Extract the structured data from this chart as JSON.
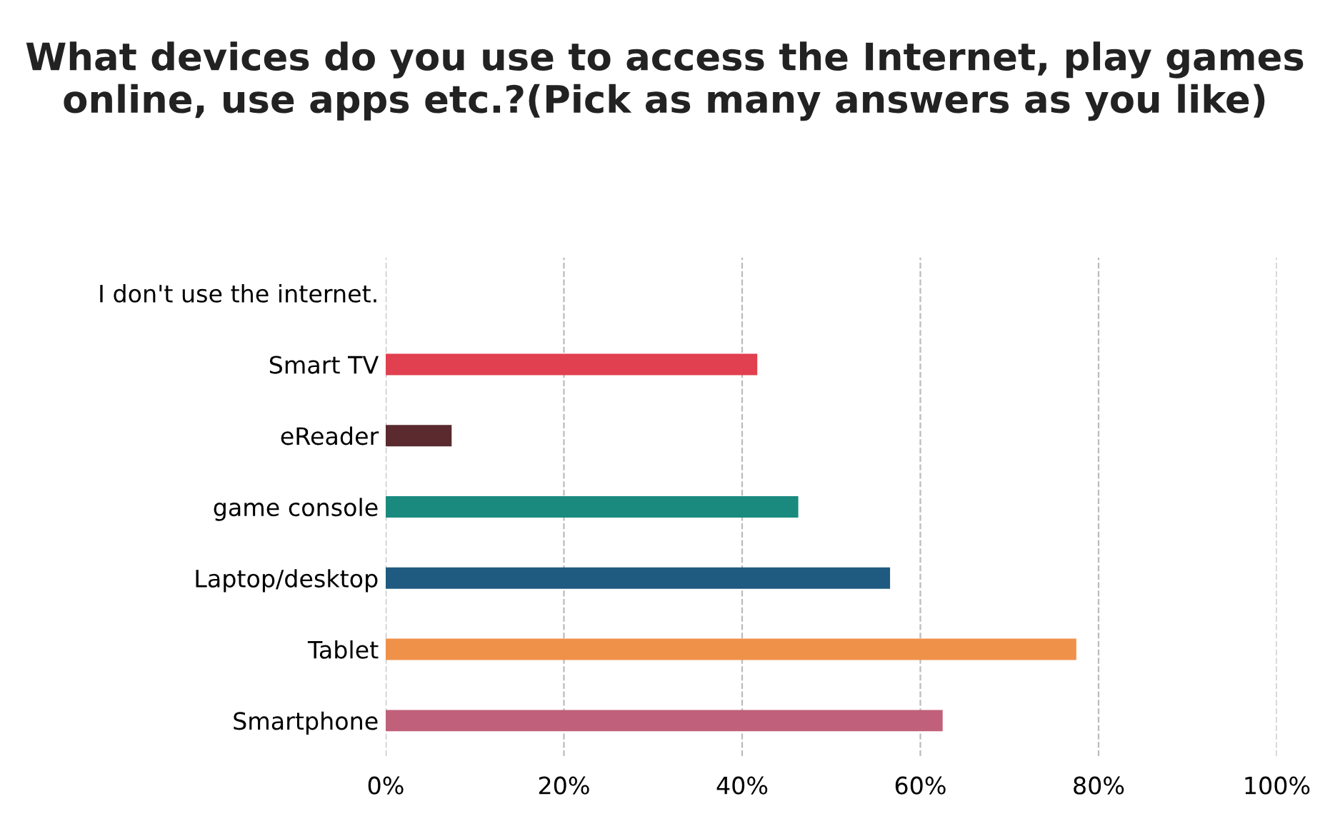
{
  "chart_data": {
    "type": "bar",
    "orientation": "horizontal",
    "title": "What devices do you use to access the Internet, play games online, use apps etc.?(Pick as many answers as you like)",
    "categories": [
      "I don't use the internet.",
      "Smart TV",
      "eReader",
      "game console",
      "Laptop/desktop",
      "Tablet",
      "Smartphone"
    ],
    "values": [
      0,
      41.7,
      7.4,
      46.3,
      56.6,
      77.5,
      62.5
    ],
    "colors": [
      "#d94050",
      "#e0404f",
      "#5a2a2e",
      "#1a8a7e",
      "#1f5a80",
      "#f0914a",
      "#c0607a"
    ],
    "xlim": [
      0,
      100
    ],
    "xticks": [
      {
        "value": 0,
        "label": "0%"
      },
      {
        "value": 20,
        "label": "20%"
      },
      {
        "value": 40,
        "label": "40%"
      },
      {
        "value": 60,
        "label": "60%"
      },
      {
        "value": 80,
        "label": "80%"
      },
      {
        "value": 100,
        "label": "100%"
      }
    ],
    "grid": "x",
    "legend": false
  }
}
